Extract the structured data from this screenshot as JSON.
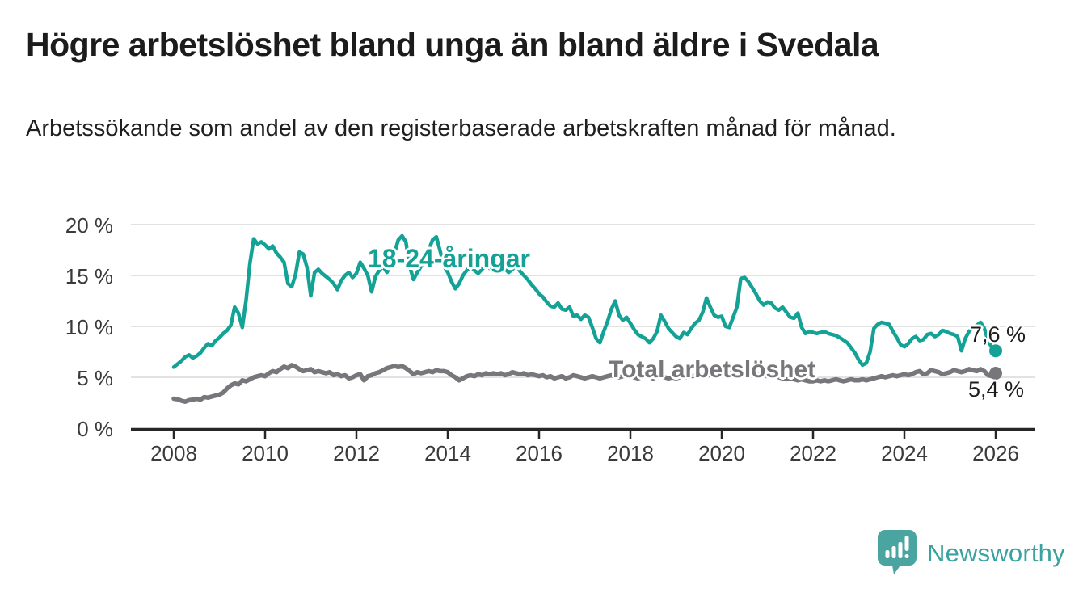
{
  "header": {
    "title": "Högre arbetslöshet bland unga än bland äldre i Svedala",
    "subtitle": "Arbetssökande som andel av den registerbaserade arbetskraften månad för månad."
  },
  "chart_data": {
    "type": "line",
    "unit": "%",
    "grid": "horizontal gridlines at 5/10/15/20, dark baseline at 0",
    "legend_position": "inline labels on lines",
    "x_start_year": 2008,
    "points_per_year": 12,
    "x_end_year": 2026,
    "ylim": [
      0,
      21
    ],
    "y_ticks": [
      "20 %",
      "15 %",
      "10 %",
      "5 %",
      "0 %"
    ],
    "y_tick_values": [
      20,
      15,
      10,
      5,
      0
    ],
    "x_ticks": [
      "2008",
      "2010",
      "2012",
      "2014",
      "2016",
      "2018",
      "2020",
      "2022",
      "2024",
      "2026"
    ],
    "series": [
      {
        "name": "18-24-åringar",
        "color": "#14a296",
        "end_value": 7.6,
        "end_label": "7,6 %",
        "values": [
          6.0,
          6.3,
          6.6,
          7.0,
          7.2,
          6.9,
          7.1,
          7.4,
          7.9,
          8.3,
          8.1,
          8.6,
          8.9,
          9.3,
          9.6,
          10.1,
          11.9,
          11.3,
          9.9,
          12.6,
          16.2,
          18.6,
          18.1,
          18.3,
          18.0,
          17.6,
          17.9,
          17.2,
          16.8,
          16.3,
          14.2,
          13.9,
          15.1,
          17.3,
          17.1,
          15.8,
          13.0,
          15.3,
          15.6,
          15.2,
          14.9,
          14.6,
          14.2,
          13.6,
          14.5,
          15.0,
          15.3,
          14.8,
          15.2,
          16.3,
          15.7,
          15.0,
          13.4,
          14.9,
          15.5,
          15.9,
          15.3,
          16.0,
          17.2,
          18.5,
          18.9,
          18.3,
          15.9,
          14.6,
          15.3,
          15.9,
          16.4,
          17.5,
          18.5,
          18.8,
          17.4,
          15.9,
          15.3,
          14.4,
          13.7,
          14.2,
          15.0,
          15.5,
          15.9,
          15.5,
          15.2,
          15.6,
          16.0,
          15.7,
          15.6,
          16.0,
          16.4,
          15.7,
          15.3,
          15.6,
          16.0,
          15.4,
          15.0,
          14.6,
          14.1,
          13.7,
          13.2,
          12.9,
          12.4,
          12.0,
          11.9,
          12.3,
          11.7,
          11.6,
          11.9,
          11.0,
          11.1,
          10.7,
          11.1,
          10.9,
          9.9,
          8.8,
          8.4,
          9.5,
          10.5,
          11.7,
          12.5,
          11.1,
          10.6,
          10.9,
          10.3,
          9.7,
          9.2,
          9.0,
          8.8,
          8.4,
          8.8,
          9.5,
          11.1,
          10.5,
          9.8,
          9.4,
          9.0,
          8.8,
          9.4,
          9.2,
          9.8,
          10.3,
          10.6,
          11.4,
          12.8,
          11.9,
          11.1,
          10.9,
          11.0,
          10.0,
          9.9,
          10.9,
          11.9,
          14.7,
          14.8,
          14.4,
          13.8,
          13.2,
          12.5,
          12.1,
          12.4,
          12.3,
          11.8,
          11.6,
          11.9,
          11.4,
          10.9,
          10.8,
          11.3,
          9.9,
          9.3,
          9.5,
          9.4,
          9.3,
          9.4,
          9.5,
          9.3,
          9.2,
          9.1,
          8.9,
          8.65,
          8.4,
          7.9,
          7.4,
          6.7,
          6.2,
          6.4,
          7.5,
          9.8,
          10.2,
          10.4,
          10.3,
          10.2,
          9.5,
          8.9,
          8.2,
          8.0,
          8.3,
          8.8,
          9.0,
          8.6,
          8.7,
          9.2,
          9.3,
          9.0,
          9.2,
          9.6,
          9.5,
          9.3,
          9.2,
          9.0,
          7.6,
          8.8,
          9.5,
          9.9,
          10.1,
          10.4,
          9.8,
          8.6,
          7.9,
          7.6
        ]
      },
      {
        "name": "Total arbetslöshet",
        "color": "#77777b",
        "end_value": 5.4,
        "end_label": "5,4 %",
        "values": [
          2.9,
          2.85,
          2.7,
          2.6,
          2.75,
          2.8,
          2.9,
          2.8,
          3.05,
          3.0,
          3.1,
          3.2,
          3.3,
          3.5,
          3.9,
          4.2,
          4.4,
          4.3,
          4.7,
          4.6,
          4.8,
          5.0,
          5.1,
          5.2,
          5.1,
          5.4,
          5.6,
          5.5,
          5.8,
          6.05,
          5.9,
          6.2,
          6.05,
          5.8,
          5.6,
          5.7,
          5.8,
          5.5,
          5.6,
          5.5,
          5.4,
          5.5,
          5.2,
          5.3,
          5.1,
          5.2,
          4.9,
          5.0,
          5.2,
          5.3,
          4.7,
          5.1,
          5.2,
          5.4,
          5.5,
          5.7,
          5.9,
          6.0,
          6.1,
          6.0,
          6.1,
          5.9,
          5.6,
          5.3,
          5.5,
          5.4,
          5.5,
          5.6,
          5.5,
          5.7,
          5.6,
          5.6,
          5.5,
          5.2,
          5.0,
          4.7,
          4.9,
          5.1,
          5.2,
          5.1,
          5.3,
          5.2,
          5.4,
          5.3,
          5.4,
          5.3,
          5.4,
          5.2,
          5.3,
          5.5,
          5.4,
          5.3,
          5.4,
          5.2,
          5.3,
          5.2,
          5.1,
          5.2,
          5.0,
          5.1,
          4.9,
          5.0,
          5.1,
          4.9,
          5.0,
          5.2,
          5.1,
          5.0,
          4.9,
          5.0,
          5.1,
          5.0,
          4.9,
          5.0,
          5.1,
          5.2,
          5.1,
          5.0,
          5.1,
          5.2,
          5.1,
          5.0,
          4.9,
          5.0,
          5.1,
          5.0,
          4.9,
          5.0,
          5.1,
          5.0,
          4.9,
          5.0,
          4.9,
          5.0,
          5.1,
          5.0,
          5.1,
          5.2,
          5.1,
          5.2,
          5.3,
          5.2,
          5.3,
          5.4,
          5.3,
          5.4,
          5.6,
          5.8,
          5.9,
          5.8,
          5.7,
          5.6,
          5.5,
          5.4,
          5.3,
          5.2,
          5.1,
          5.2,
          5.1,
          5.0,
          4.9,
          4.8,
          4.9,
          4.8,
          4.7,
          4.8,
          4.7,
          4.6,
          4.6,
          4.7,
          4.6,
          4.7,
          4.6,
          4.7,
          4.8,
          4.7,
          4.6,
          4.7,
          4.8,
          4.7,
          4.7,
          4.8,
          4.7,
          4.8,
          4.9,
          5.0,
          5.1,
          5.0,
          5.1,
          5.2,
          5.1,
          5.2,
          5.3,
          5.2,
          5.3,
          5.5,
          5.6,
          5.3,
          5.4,
          5.7,
          5.6,
          5.5,
          5.3,
          5.4,
          5.5,
          5.7,
          5.6,
          5.5,
          5.6,
          5.8,
          5.7,
          5.6,
          5.8,
          5.6,
          5.2,
          5.1,
          5.4
        ]
      }
    ],
    "colors": {
      "axis": "#262626",
      "gridline": "#d9d9d9",
      "tick_text": "#3a3a3a"
    }
  },
  "branding": {
    "name": "Newsworthy",
    "icon": "bar-chart-speech-bubble-icon",
    "icon_color": "#4aa5a0",
    "text_color": "#3aa3a0"
  }
}
